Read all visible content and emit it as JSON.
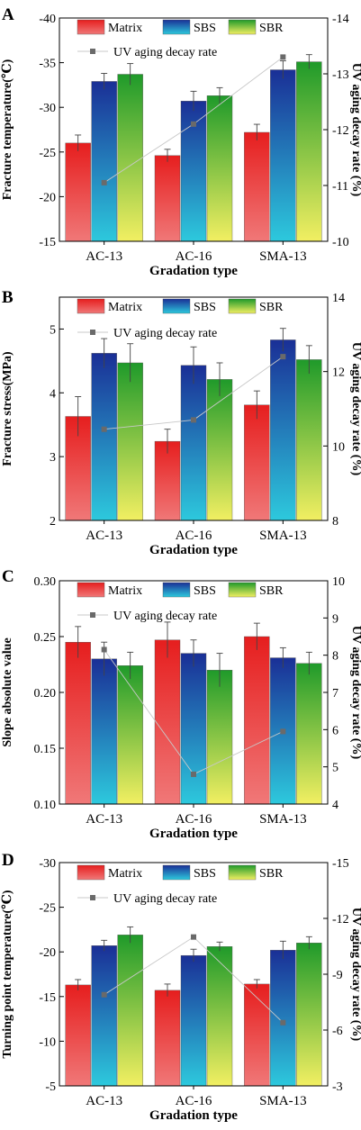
{
  "chart_data": [
    {
      "panel_letter": "A",
      "type": "bar",
      "categories": [
        "AC-13",
        "AC-16",
        "SMA-13"
      ],
      "xlabel": "Gradation type",
      "ylabel": "Fracture temperature(℃)",
      "y2label": "UV aging decay rate (%)",
      "ylim": [
        -15,
        -40
      ],
      "yticks": [
        -15,
        -20,
        -25,
        -30,
        -35,
        -40
      ],
      "y2lim": [
        -10,
        -14
      ],
      "y2ticks": [
        -10,
        -11,
        -12,
        -13,
        -14
      ],
      "series": [
        {
          "name": "Matrix",
          "values": [
            -26.0,
            -24.6,
            -27.2
          ],
          "errors": [
            0.9,
            0.7,
            0.9
          ]
        },
        {
          "name": "SBS",
          "values": [
            -32.9,
            -30.7,
            -34.2
          ],
          "errors": [
            0.9,
            1.1,
            1.0
          ]
        },
        {
          "name": "SBR",
          "values": [
            -33.7,
            -31.3,
            -35.1
          ],
          "errors": [
            1.2,
            0.9,
            0.8
          ]
        }
      ],
      "line": {
        "name": "UV aging decay rate",
        "values": [
          -11.05,
          -12.1,
          -13.3
        ]
      }
    },
    {
      "panel_letter": "B",
      "type": "bar",
      "categories": [
        "AC-13",
        "AC-16",
        "SMA-13"
      ],
      "xlabel": "Gradation type",
      "ylabel": "Fracture stress(MPa)",
      "y2label": "UV aging decay rate (%)",
      "ylim": [
        2,
        5.5
      ],
      "yticks": [
        2,
        3,
        4,
        5
      ],
      "y2lim": [
        8,
        14
      ],
      "y2ticks": [
        8,
        10,
        12,
        14
      ],
      "series": [
        {
          "name": "Matrix",
          "values": [
            3.63,
            3.24,
            3.81
          ],
          "errors": [
            0.31,
            0.19,
            0.22
          ]
        },
        {
          "name": "SBS",
          "values": [
            4.62,
            4.43,
            4.83
          ],
          "errors": [
            0.23,
            0.29,
            0.18
          ]
        },
        {
          "name": "SBR",
          "values": [
            4.47,
            4.21,
            4.52
          ],
          "errors": [
            0.3,
            0.26,
            0.22
          ]
        }
      ],
      "line": {
        "name": "UV aging decay rate",
        "values": [
          10.45,
          10.7,
          12.4
        ]
      }
    },
    {
      "panel_letter": "C",
      "type": "bar",
      "categories": [
        "AC-13",
        "AC-16",
        "SMA-13"
      ],
      "xlabel": "Gradation type",
      "ylabel": "Slope absolute value",
      "y2label": "UV aging decay rate (%)",
      "ylim": [
        0.1,
        0.3
      ],
      "yticks": [
        "0.10",
        "0.15",
        "0.20",
        "0.25",
        "0.30"
      ],
      "y2lim": [
        4,
        10
      ],
      "y2ticks": [
        4,
        5,
        6,
        7,
        8,
        9,
        10
      ],
      "series": [
        {
          "name": "Matrix",
          "values": [
            0.245,
            0.247,
            0.25
          ],
          "errors": [
            0.014,
            0.016,
            0.012
          ]
        },
        {
          "name": "SBS",
          "values": [
            0.23,
            0.235,
            0.231
          ],
          "errors": [
            0.015,
            0.012,
            0.009
          ]
        },
        {
          "name": "SBR",
          "values": [
            0.224,
            0.22,
            0.226
          ],
          "errors": [
            0.012,
            0.015,
            0.01
          ]
        }
      ],
      "line": {
        "name": "UV aging decay rate",
        "values": [
          8.15,
          4.8,
          5.95
        ]
      }
    },
    {
      "panel_letter": "D",
      "type": "bar",
      "categories": [
        "AC-13",
        "AC-16",
        "SMA-13"
      ],
      "xlabel": "Gradation type",
      "ylabel": "Turning point temperature(℃)",
      "y2label": "UV aging decay rate (%)",
      "ylim": [
        -5,
        -30
      ],
      "yticks": [
        -5,
        -10,
        -15,
        -20,
        -25,
        -30
      ],
      "y2lim": [
        -3,
        -15
      ],
      "y2ticks": [
        -3,
        -6,
        -9,
        -12,
        -15
      ],
      "series": [
        {
          "name": "Matrix",
          "values": [
            -16.3,
            -15.7,
            -16.4
          ],
          "errors": [
            0.6,
            0.7,
            0.5
          ]
        },
        {
          "name": "SBS",
          "values": [
            -20.7,
            -19.6,
            -20.2
          ],
          "errors": [
            0.6,
            0.7,
            1.0
          ]
        },
        {
          "name": "SBR",
          "values": [
            -21.9,
            -20.6,
            -21.0
          ],
          "errors": [
            0.9,
            0.5,
            0.7
          ]
        }
      ],
      "line": {
        "name": "UV aging decay rate",
        "values": [
          -7.9,
          -11.0,
          -6.4
        ]
      }
    }
  ],
  "colors": {
    "Matrix": {
      "top": "#e61e1e",
      "bottom": "#f07878"
    },
    "SBS": {
      "top": "#1a2f96",
      "bottom": "#2dc9dd"
    },
    "SBR": {
      "top": "#1f9a2a",
      "bottom": "#f2ef62"
    },
    "line": "#c8c8c8",
    "marker": "#6a6a6a",
    "axis": "#000000"
  }
}
